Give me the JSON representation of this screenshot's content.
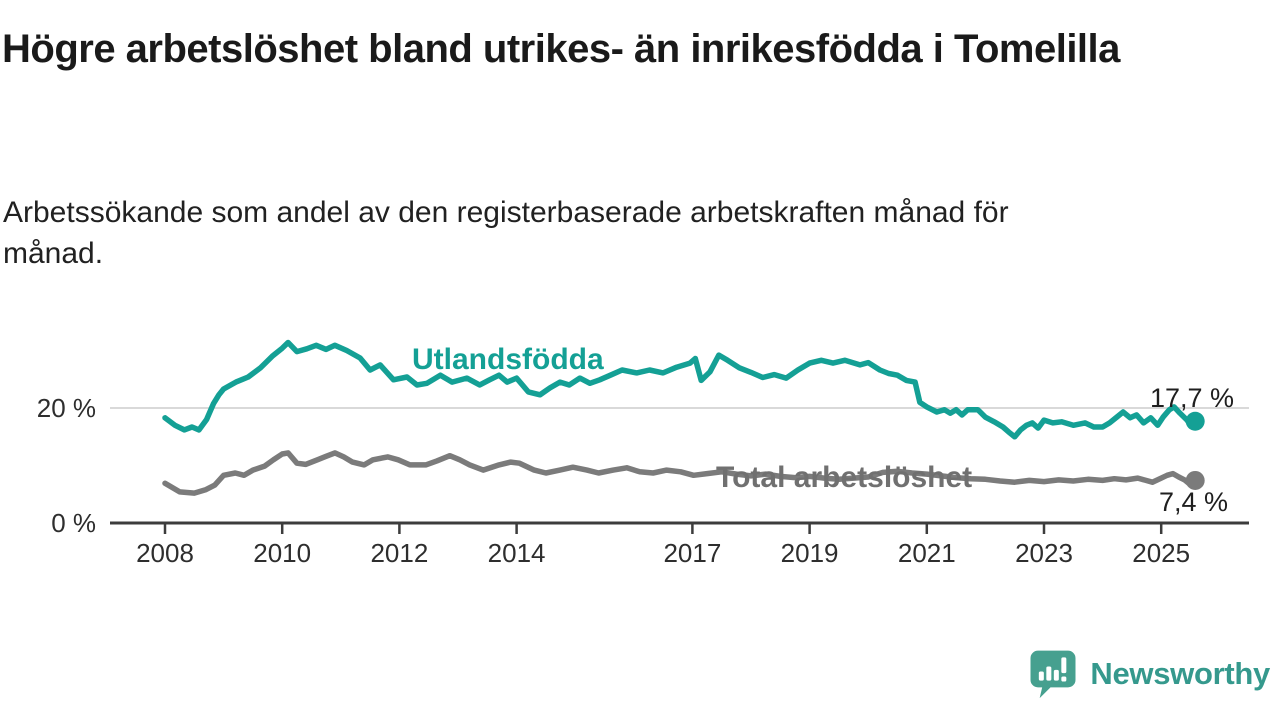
{
  "header": {
    "title": "Högre arbetslöshet bland utrikes- än inrikesfödda i Tomelilla",
    "subtitle": "Arbetssökande som andel av den registerbaserade arbetskraften månad för månad."
  },
  "chart_data": {
    "type": "line",
    "unit": "%",
    "grid": "single horizontal gridline at 20 %",
    "legend_position": "inline labels on lines",
    "y_ticks": [
      {
        "label": "20 %",
        "value": 20
      },
      {
        "label": "0 %",
        "value": 0
      }
    ],
    "gridline_values": [
      20
    ],
    "x_ticks": [
      {
        "label": "2008",
        "year": 2008
      },
      {
        "label": "2010",
        "year": 2010
      },
      {
        "label": "2012",
        "year": 2012
      },
      {
        "label": "2014",
        "year": 2014
      },
      {
        "label": "2017",
        "year": 2017
      },
      {
        "label": "2019",
        "year": 2019
      },
      {
        "label": "2021",
        "year": 2021
      },
      {
        "label": "2023",
        "year": 2023
      },
      {
        "label": "2025",
        "year": 2025
      }
    ],
    "xlim": [
      2008,
      2025.6
    ],
    "ylim": [
      0,
      32
    ],
    "series": [
      {
        "name": "Utlandsfödda",
        "color": "#14A095",
        "end_label": "17,7 %",
        "end_value": 17.7,
        "x": [
          2008.0,
          2008.17,
          2008.33,
          2008.46,
          2008.58,
          2008.71,
          2008.83,
          2008.92,
          2009.0,
          2009.21,
          2009.42,
          2009.63,
          2009.83,
          2010.0,
          2010.1,
          2010.25,
          2010.42,
          2010.58,
          2010.75,
          2010.9,
          2011.1,
          2011.33,
          2011.5,
          2011.67,
          2011.9,
          2012.13,
          2012.3,
          2012.47,
          2012.7,
          2012.9,
          2013.15,
          2013.37,
          2013.54,
          2013.7,
          2013.84,
          2014.0,
          2014.2,
          2014.4,
          2014.57,
          2014.74,
          2014.9,
          2015.08,
          2015.25,
          2015.42,
          2015.6,
          2015.8,
          2016.05,
          2016.27,
          2016.5,
          2016.73,
          2016.96,
          2017.05,
          2017.15,
          2017.3,
          2017.45,
          2017.6,
          2017.8,
          2018.0,
          2018.2,
          2018.4,
          2018.6,
          2018.8,
          2019.0,
          2019.2,
          2019.4,
          2019.6,
          2019.86,
          2020.0,
          2020.2,
          2020.35,
          2020.5,
          2020.65,
          2020.8,
          2020.88,
          2021.0,
          2021.17,
          2021.3,
          2021.4,
          2021.5,
          2021.6,
          2021.7,
          2021.87,
          2022.0,
          2022.15,
          2022.3,
          2022.4,
          2022.5,
          2022.6,
          2022.7,
          2022.8,
          2022.9,
          2023.0,
          2023.15,
          2023.3,
          2023.5,
          2023.7,
          2023.85,
          2024.0,
          2024.12,
          2024.24,
          2024.35,
          2024.47,
          2024.58,
          2024.7,
          2024.82,
          2024.94,
          2025.03,
          2025.14,
          2025.22,
          2025.32,
          2025.44,
          2025.5,
          2025.58
        ],
        "values": [
          18.3,
          17.0,
          16.2,
          16.7,
          16.2,
          18.0,
          20.8,
          22.3,
          23.3,
          24.5,
          25.4,
          27.0,
          29.0,
          30.4,
          31.4,
          29.8,
          30.3,
          30.9,
          30.2,
          30.9,
          30.0,
          28.7,
          26.6,
          27.5,
          24.9,
          25.4,
          24.0,
          24.3,
          25.7,
          24.5,
          25.2,
          24.0,
          24.9,
          25.7,
          24.5,
          25.2,
          22.8,
          22.3,
          23.5,
          24.5,
          24.0,
          25.2,
          24.3,
          24.9,
          25.7,
          26.6,
          26.1,
          26.6,
          26.1,
          27.1,
          27.8,
          28.6,
          24.8,
          26.3,
          29.2,
          28.3,
          27.0,
          26.2,
          25.3,
          25.8,
          25.2,
          26.6,
          27.8,
          28.3,
          27.8,
          28.3,
          27.5,
          27.9,
          26.6,
          26.0,
          25.7,
          24.8,
          24.5,
          21.0,
          20.2,
          19.3,
          19.7,
          19.1,
          19.7,
          18.8,
          19.7,
          19.7,
          18.4,
          17.6,
          16.7,
          15.8,
          15.0,
          16.2,
          17.0,
          17.4,
          16.5,
          17.9,
          17.4,
          17.6,
          17.0,
          17.4,
          16.7,
          16.7,
          17.4,
          18.4,
          19.3,
          18.3,
          18.8,
          17.4,
          18.3,
          17.0,
          18.4,
          19.7,
          20.2,
          19.1,
          17.9,
          17.1,
          17.7
        ]
      },
      {
        "name": "Total arbetslöshet",
        "color": "#7B7B7B",
        "label_color": "#707070",
        "end_label": "7,4 %",
        "end_value": 7.4,
        "x": [
          2008.0,
          2008.25,
          2008.5,
          2008.7,
          2008.85,
          2009.0,
          2009.2,
          2009.35,
          2009.5,
          2009.7,
          2009.85,
          2010.0,
          2010.1,
          2010.25,
          2010.4,
          2010.6,
          2010.75,
          2010.9,
          2011.05,
          2011.2,
          2011.4,
          2011.55,
          2011.8,
          2011.98,
          2012.18,
          2012.45,
          2012.64,
          2012.86,
          2013.03,
          2013.2,
          2013.43,
          2013.7,
          2013.9,
          2014.05,
          2014.3,
          2014.5,
          2014.74,
          2014.96,
          2015.2,
          2015.4,
          2015.65,
          2015.88,
          2016.1,
          2016.33,
          2016.56,
          2016.8,
          2017.02,
          2017.25,
          2017.5,
          2017.75,
          2018.0,
          2018.25,
          2018.5,
          2018.75,
          2019.0,
          2019.25,
          2019.5,
          2019.75,
          2020.0,
          2020.25,
          2020.5,
          2020.75,
          2021.0,
          2021.25,
          2021.5,
          2021.75,
          2022.0,
          2022.25,
          2022.5,
          2022.75,
          2023.0,
          2023.25,
          2023.5,
          2023.75,
          2024.0,
          2024.2,
          2024.4,
          2024.6,
          2024.85,
          2025.0,
          2025.1,
          2025.2,
          2025.3,
          2025.4,
          2025.47,
          2025.53,
          2025.58
        ],
        "values": [
          6.9,
          5.4,
          5.2,
          5.8,
          6.6,
          8.3,
          8.7,
          8.3,
          9.2,
          9.9,
          11.0,
          12.0,
          12.2,
          10.4,
          10.2,
          11.0,
          11.6,
          12.2,
          11.5,
          10.6,
          10.1,
          11.0,
          11.5,
          11.0,
          10.1,
          10.1,
          10.8,
          11.7,
          11.0,
          10.1,
          9.2,
          10.1,
          10.6,
          10.4,
          9.2,
          8.7,
          9.2,
          9.7,
          9.2,
          8.7,
          9.2,
          9.6,
          8.9,
          8.7,
          9.2,
          8.9,
          8.3,
          8.6,
          8.9,
          8.5,
          8.2,
          8.5,
          8.1,
          7.9,
          8.1,
          7.8,
          7.6,
          7.8,
          8.0,
          8.8,
          9.0,
          8.7,
          8.5,
          8.2,
          7.9,
          7.7,
          7.6,
          7.3,
          7.1,
          7.4,
          7.2,
          7.5,
          7.3,
          7.6,
          7.4,
          7.7,
          7.5,
          7.8,
          7.1,
          7.8,
          8.3,
          8.6,
          8.0,
          7.5,
          6.9,
          7.7,
          7.4
        ]
      }
    ],
    "colors": {
      "gridline": "#d9d9d9",
      "axis": "#3c3c3c",
      "tick_text": "#2e2e2e",
      "value_label_text": "#1f1f1f"
    }
  },
  "footer": {
    "brand": "Newsworthy"
  }
}
